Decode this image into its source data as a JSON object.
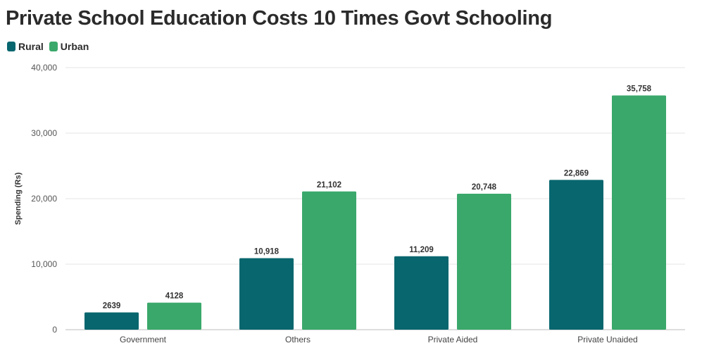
{
  "chart_data": {
    "type": "bar",
    "title": "Private School Education Costs 10 Times Govt Schooling",
    "xlabel": "",
    "ylabel": "Spending (Rs)",
    "ylim": [
      0,
      40000
    ],
    "yticks": [
      0,
      10000,
      20000,
      30000,
      40000
    ],
    "ytick_labels": [
      "0",
      "10,000",
      "20,000",
      "30,000",
      "40,000"
    ],
    "categories": [
      "Government",
      "Others",
      "Private Aided",
      "Private Unaided"
    ],
    "series": [
      {
        "name": "Rural",
        "color": "#07666e",
        "values": [
          2639,
          10918,
          11209,
          22869
        ],
        "labels": [
          "2639",
          "10,918",
          "11,209",
          "22,869"
        ]
      },
      {
        "name": "Urban",
        "color": "#3aa86b",
        "values": [
          4128,
          21102,
          20748,
          35758
        ],
        "labels": [
          "4128",
          "21,102",
          "20,748",
          "35,758"
        ]
      }
    ],
    "grid": true,
    "legend_position": "top-left"
  }
}
